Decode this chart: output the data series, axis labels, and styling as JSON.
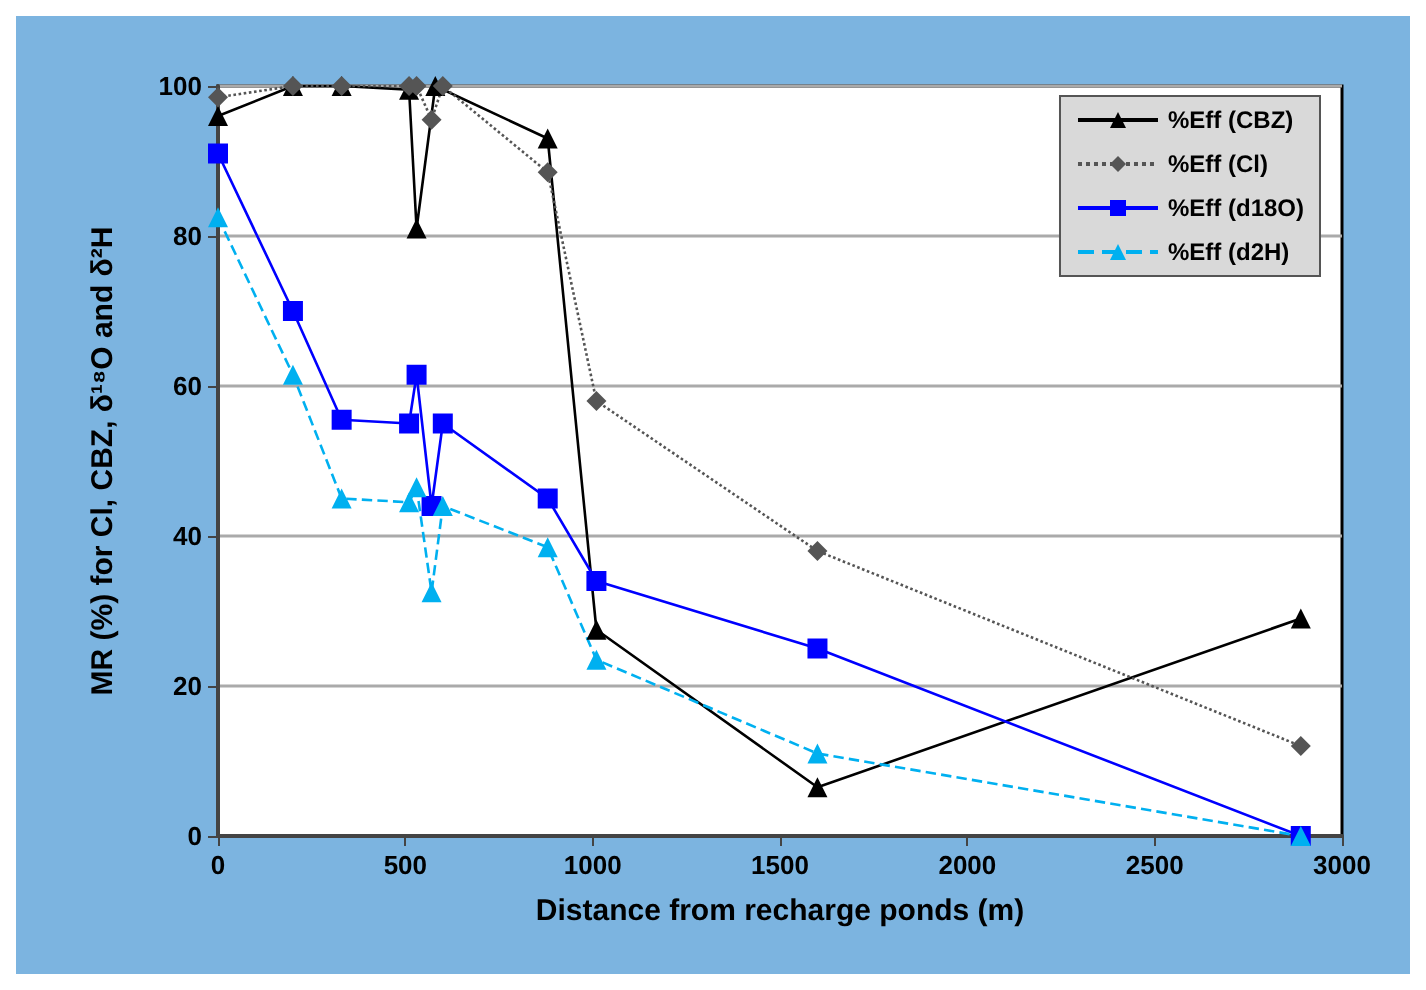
{
  "chart_data": {
    "type": "line",
    "xlabel": "Distance from recharge ponds (m)",
    "ylabel": "MR (%) for Cl, CBZ, δ¹⁸O and δ²H",
    "xlim": [
      0,
      3000
    ],
    "xticks": [
      0,
      500,
      1000,
      1500,
      2000,
      2500,
      3000
    ],
    "ylim": [
      0,
      100
    ],
    "yticks": [
      0,
      20,
      40,
      60,
      80,
      100
    ],
    "grid": "y",
    "legend": "top right",
    "series": [
      {
        "name": "%Eff (CBZ)",
        "color": "#000000",
        "marker": "triangle",
        "line_style": "solid",
        "x": [
          0,
          200,
          330,
          510,
          530,
          580,
          880,
          1010,
          1600,
          2890
        ],
        "values": [
          96,
          100,
          100,
          99.5,
          81,
          100,
          93,
          27.5,
          6.5,
          29
        ]
      },
      {
        "name": "%Eff (Cl)",
        "color": "#555555",
        "marker": "diamond",
        "line_style": "dotted",
        "x": [
          0,
          200,
          330,
          510,
          530,
          570,
          600,
          880,
          1010,
          1600,
          2890
        ],
        "values": [
          98.5,
          100,
          100,
          100,
          100,
          95.5,
          100,
          88.5,
          58,
          38,
          12
        ]
      },
      {
        "name": "%Eff (d18O)",
        "color": "#0000ff",
        "marker": "square",
        "line_style": "solid",
        "x": [
          0,
          200,
          330,
          510,
          530,
          570,
          600,
          880,
          1010,
          1600,
          2890
        ],
        "values": [
          91,
          70,
          55.5,
          55,
          61.5,
          44,
          55,
          45,
          34,
          25,
          0
        ]
      },
      {
        "name": "%Eff (d2H)",
        "color": "#00b0f0",
        "marker": "triangle",
        "line_style": "dashed",
        "x": [
          0,
          200,
          330,
          510,
          530,
          570,
          600,
          880,
          1010,
          1600,
          2890
        ],
        "values": [
          82.5,
          61.5,
          45,
          44.5,
          46.5,
          32.5,
          44,
          38.5,
          23.5,
          11,
          0
        ]
      }
    ]
  }
}
